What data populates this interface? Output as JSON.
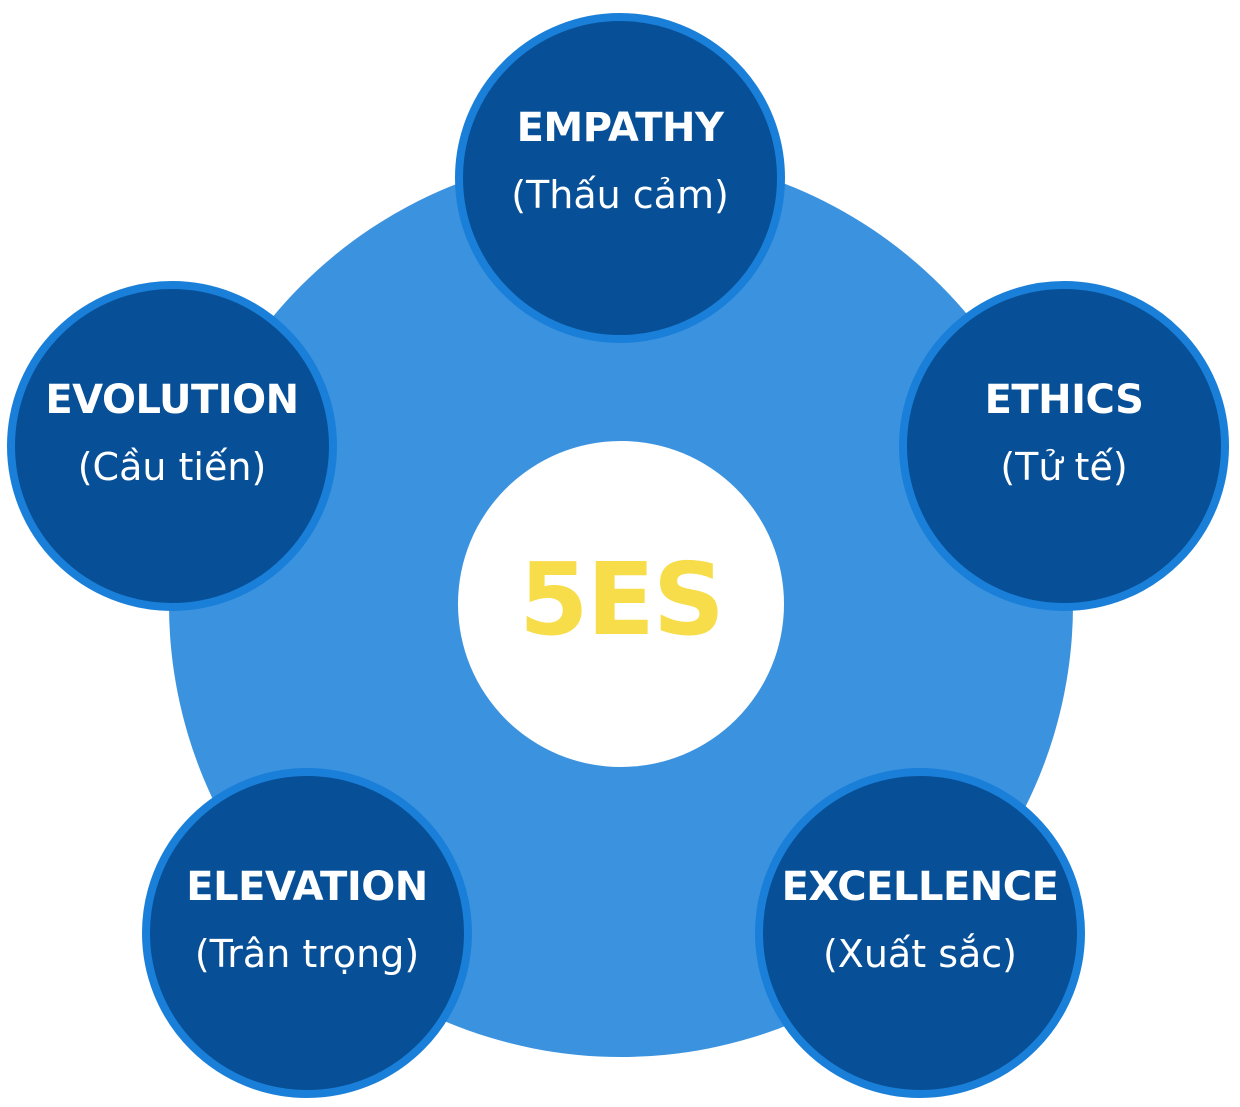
{
  "colors": {
    "ring": "#3b93e0",
    "node_fill": "#075097",
    "node_border": "#1a7fd8",
    "center_fill": "#ffffff",
    "center_text": "#f7dd4a",
    "node_text": "#ffffff"
  },
  "center": {
    "label": "5ES"
  },
  "nodes": [
    {
      "title": "EMPATHY",
      "subtitle": "(Thấu cảm)"
    },
    {
      "title": "ETHICS",
      "subtitle": "(Tử tế)"
    },
    {
      "title": "EXCELLENCE",
      "subtitle": "(Xuất sắc)"
    },
    {
      "title": "ELEVATION",
      "subtitle": "(Trân trọng)"
    },
    {
      "title": "EVOLUTION",
      "subtitle": "(Cầu tiến)"
    }
  ]
}
